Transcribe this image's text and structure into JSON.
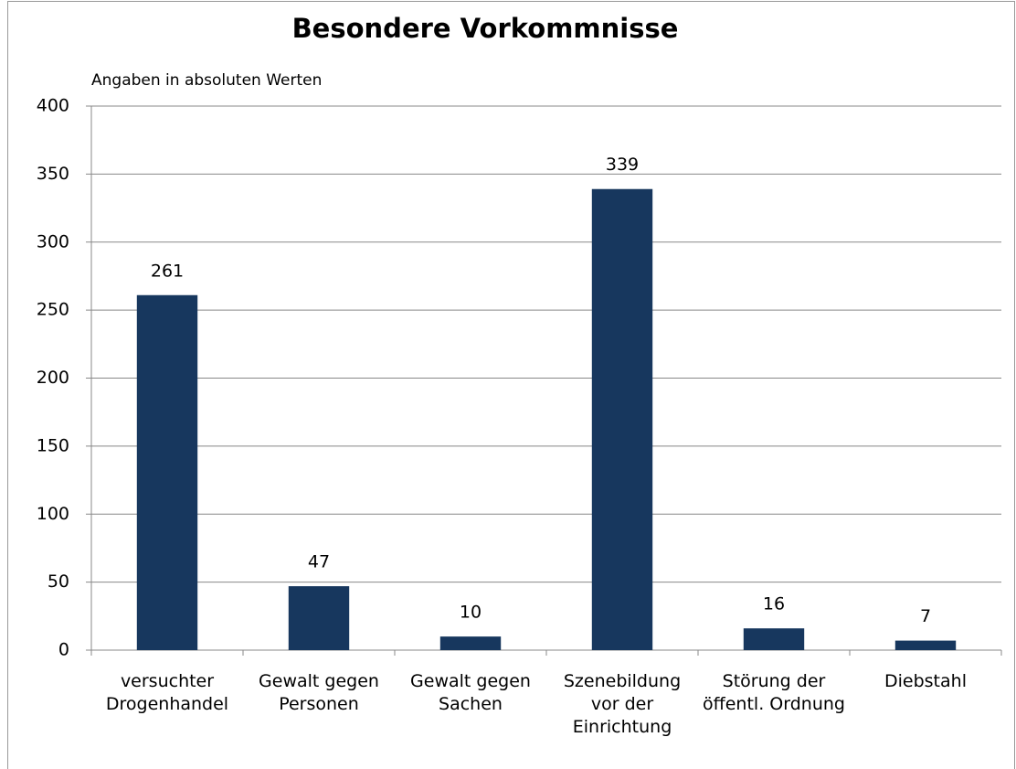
{
  "chart_data": {
    "type": "bar",
    "title": "Besondere Vorkommnisse",
    "subtitle": "Angaben in absoluten Werten",
    "categories": [
      "versuchter Drogenhandel",
      "Gewalt gegen Personen",
      "Gewalt gegen Sachen",
      "Szenebildung vor der Einrichtung",
      "Störung der öffentl. Ordnung",
      "Diebstahl"
    ],
    "values": [
      261,
      47,
      10,
      339,
      16,
      7
    ],
    "color": "#17375e",
    "ylim": [
      0,
      400
    ],
    "yticks": [
      0,
      50,
      100,
      150,
      200,
      250,
      300,
      350,
      400
    ],
    "grid": true
  }
}
